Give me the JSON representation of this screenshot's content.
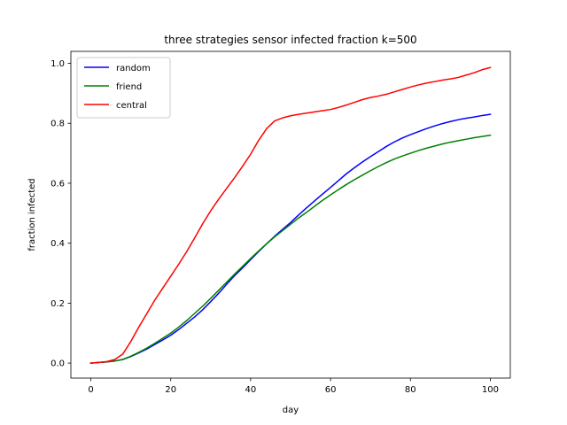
{
  "chart_data": {
    "type": "line",
    "title": "three strategies sensor infected fraction k=500",
    "xlabel": "day",
    "ylabel": "fraction infected",
    "xlim": [
      -5,
      105
    ],
    "ylim": [
      -0.05,
      1.04
    ],
    "xticks": [
      0,
      20,
      40,
      60,
      80,
      100
    ],
    "xtick_labels": [
      "0",
      "20",
      "40",
      "60",
      "80",
      "100"
    ],
    "yticks": [
      0.0,
      0.2,
      0.4,
      0.6,
      0.8,
      1.0
    ],
    "ytick_labels": [
      "0.0",
      "0.2",
      "0.4",
      "0.6",
      "0.8",
      "1.0"
    ],
    "grid": false,
    "legend_position": "top-left",
    "x": [
      0,
      2,
      4,
      6,
      8,
      10,
      12,
      14,
      16,
      18,
      20,
      22,
      24,
      26,
      28,
      30,
      32,
      34,
      36,
      38,
      40,
      42,
      44,
      46,
      48,
      50,
      52,
      54,
      56,
      58,
      60,
      62,
      64,
      66,
      68,
      70,
      72,
      74,
      76,
      78,
      80,
      82,
      84,
      86,
      88,
      90,
      92,
      94,
      96,
      98,
      100
    ],
    "series": [
      {
        "name": "random",
        "color": "#0000ff",
        "values": [
          0.0,
          0.002,
          0.004,
          0.007,
          0.012,
          0.022,
          0.034,
          0.047,
          0.062,
          0.077,
          0.093,
          0.112,
          0.133,
          0.154,
          0.178,
          0.205,
          0.233,
          0.263,
          0.292,
          0.318,
          0.345,
          0.372,
          0.398,
          0.423,
          0.446,
          0.469,
          0.494,
          0.518,
          0.541,
          0.564,
          0.586,
          0.609,
          0.632,
          0.652,
          0.671,
          0.689,
          0.706,
          0.723,
          0.738,
          0.751,
          0.762,
          0.772,
          0.782,
          0.791,
          0.799,
          0.806,
          0.812,
          0.817,
          0.821,
          0.826,
          0.83
        ]
      },
      {
        "name": "friend",
        "color": "#008000",
        "values": [
          0.0,
          0.002,
          0.004,
          0.007,
          0.012,
          0.023,
          0.036,
          0.05,
          0.066,
          0.083,
          0.1,
          0.12,
          0.142,
          0.166,
          0.19,
          0.216,
          0.243,
          0.27,
          0.297,
          0.323,
          0.349,
          0.374,
          0.398,
          0.421,
          0.442,
          0.463,
          0.484,
          0.503,
          0.523,
          0.543,
          0.561,
          0.579,
          0.596,
          0.612,
          0.627,
          0.642,
          0.656,
          0.669,
          0.681,
          0.691,
          0.7,
          0.709,
          0.717,
          0.724,
          0.731,
          0.737,
          0.742,
          0.747,
          0.752,
          0.756,
          0.76
        ]
      },
      {
        "name": "central",
        "color": "#ff0000",
        "values": [
          0.0,
          0.002,
          0.005,
          0.012,
          0.03,
          0.072,
          0.12,
          0.165,
          0.21,
          0.25,
          0.29,
          0.33,
          0.372,
          0.418,
          0.465,
          0.508,
          0.547,
          0.583,
          0.619,
          0.657,
          0.697,
          0.743,
          0.782,
          0.808,
          0.818,
          0.825,
          0.83,
          0.834,
          0.838,
          0.842,
          0.846,
          0.853,
          0.861,
          0.87,
          0.879,
          0.886,
          0.891,
          0.897,
          0.905,
          0.913,
          0.921,
          0.928,
          0.934,
          0.939,
          0.944,
          0.948,
          0.953,
          0.961,
          0.969,
          0.979,
          0.986
        ]
      }
    ]
  }
}
